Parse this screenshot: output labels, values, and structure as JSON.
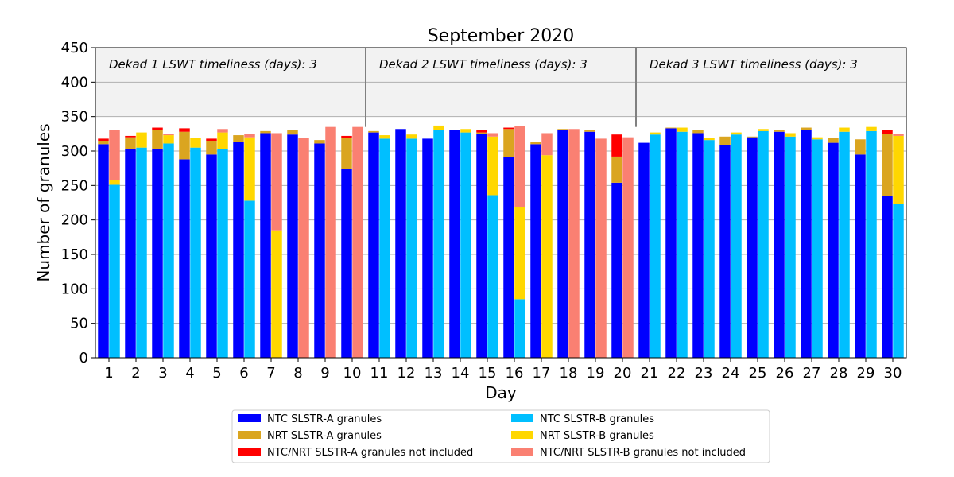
{
  "chart_data": {
    "type": "bar",
    "stacked": true,
    "title": "September 2020",
    "xlabel": "Day",
    "ylabel": "Number of granules",
    "ylim": [
      0,
      450
    ],
    "yticks": [
      0,
      50,
      100,
      150,
      200,
      250,
      300,
      350,
      400,
      450
    ],
    "categories": [
      "1",
      "2",
      "3",
      "4",
      "5",
      "6",
      "7",
      "8",
      "9",
      "10",
      "11",
      "12",
      "13",
      "14",
      "15",
      "16",
      "17",
      "18",
      "19",
      "20",
      "21",
      "22",
      "23",
      "24",
      "25",
      "26",
      "27",
      "28",
      "29",
      "30"
    ],
    "grid": "horizontal",
    "shaded_band": [
      350,
      450
    ],
    "dekad_labels": [
      "Dekad 1 LSWT timeliness (days): 3",
      "Dekad 2 LSWT timeliness (days): 3",
      "Dekad 3 LSWT timeliness (days): 3"
    ],
    "legend": {
      "placement": "bottom-center",
      "items": [
        {
          "label": "NTC SLSTR-A granules",
          "color": "#0000ff"
        },
        {
          "label": "NTC SLSTR-B granules",
          "color": "#00bfff"
        },
        {
          "label": "NRT SLSTR-A granules",
          "color": "#daa520"
        },
        {
          "label": "NRT SLSTR-B granules",
          "color": "#ffd700"
        },
        {
          "label": "NTC/NRT SLSTR-A granules not included",
          "color": "#ff0000"
        },
        {
          "label": "NTC/NRT SLSTR-B granules not included",
          "color": "#fa8072"
        }
      ]
    },
    "series_a": [
      {
        "name": "NTC SLSTR-A granules",
        "color": "#0000ff",
        "values": [
          310,
          303,
          303,
          288,
          295,
          313,
          326,
          324,
          311,
          274,
          327,
          332,
          318,
          330,
          325,
          291,
          310,
          330,
          328,
          254,
          312,
          333,
          326,
          309,
          320,
          328,
          330,
          312,
          295,
          235
        ]
      },
      {
        "name": "NRT SLSTR-A granules",
        "color": "#daa520",
        "values": [
          5,
          17,
          28,
          40,
          20,
          10,
          3,
          7,
          5,
          45,
          2,
          0,
          0,
          0,
          2,
          41,
          3,
          2,
          3,
          38,
          0,
          1,
          5,
          12,
          1,
          3,
          4,
          7,
          22,
          90
        ]
      },
      {
        "name": "NTC/NRT SLSTR-A granules not included",
        "color": "#ff0000",
        "values": [
          3,
          2,
          3,
          5,
          3,
          0,
          0,
          0,
          0,
          3,
          0,
          0,
          0,
          0,
          3,
          2,
          0,
          0,
          0,
          32,
          0,
          0,
          0,
          0,
          0,
          0,
          0,
          0,
          0,
          5
        ]
      }
    ],
    "series_b": [
      {
        "name": "NTC SLSTR-B granules",
        "color": "#00bfff",
        "values": [
          251,
          305,
          311,
          305,
          303,
          228,
          0,
          0,
          0,
          0,
          318,
          318,
          331,
          327,
          236,
          85,
          0,
          0,
          0,
          0,
          324,
          328,
          316,
          324,
          329,
          321,
          317,
          328,
          329,
          223
        ]
      },
      {
        "name": "NRT SLSTR-B granules",
        "color": "#ffd700",
        "values": [
          7,
          22,
          12,
          14,
          24,
          92,
          185,
          0,
          0,
          0,
          5,
          6,
          6,
          5,
          85,
          134,
          294,
          0,
          0,
          0,
          3,
          6,
          3,
          3,
          3,
          5,
          3,
          6,
          6,
          99
        ]
      },
      {
        "name": "NTC/NRT SLSTR-B granules not included",
        "color": "#fa8072",
        "values": [
          72,
          0,
          2,
          0,
          5,
          5,
          141,
          319,
          335,
          335,
          0,
          0,
          0,
          0,
          5,
          117,
          32,
          332,
          318,
          320,
          0,
          0,
          0,
          0,
          0,
          0,
          0,
          0,
          0,
          3
        ]
      }
    ]
  }
}
